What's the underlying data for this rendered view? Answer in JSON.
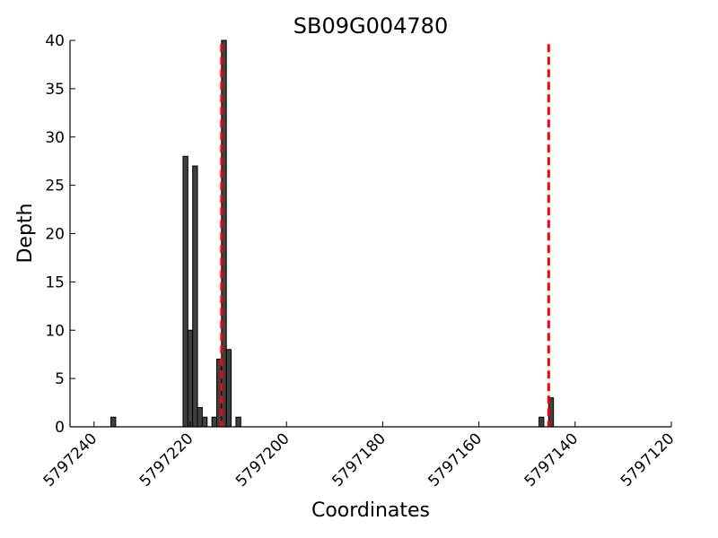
{
  "chart_data": {
    "type": "bar",
    "title": "SB09G004780",
    "xlabel": "Coordinates",
    "ylabel": "Depth",
    "xlim": [
      5797245,
      5797120
    ],
    "ylim": [
      0,
      40
    ],
    "x_reversed": true,
    "xticks": [
      "5797240",
      "5797220",
      "5797200",
      "5797180",
      "5797160",
      "5797140",
      "5797120"
    ],
    "yticks": [
      "0",
      "5",
      "10",
      "15",
      "20",
      "25",
      "30",
      "35",
      "40"
    ],
    "bar_width": 1,
    "bars": [
      {
        "x": 5797236,
        "y": 1
      },
      {
        "x": 5797221,
        "y": 28
      },
      {
        "x": 5797220,
        "y": 10
      },
      {
        "x": 5797219,
        "y": 27
      },
      {
        "x": 5797218,
        "y": 2
      },
      {
        "x": 5797217,
        "y": 1
      },
      {
        "x": 5797215,
        "y": 1
      },
      {
        "x": 5797214,
        "y": 7
      },
      {
        "x": 5797213,
        "y": 40
      },
      {
        "x": 5797212,
        "y": 8
      },
      {
        "x": 5797210,
        "y": 1
      },
      {
        "x": 5797147,
        "y": 1
      },
      {
        "x": 5797145,
        "y": 3
      }
    ],
    "vlines": [
      5797213.5,
      5797145.5
    ],
    "bar_color": "#404040",
    "vline_color": "#ff0000",
    "grid": false,
    "legend": "none"
  }
}
